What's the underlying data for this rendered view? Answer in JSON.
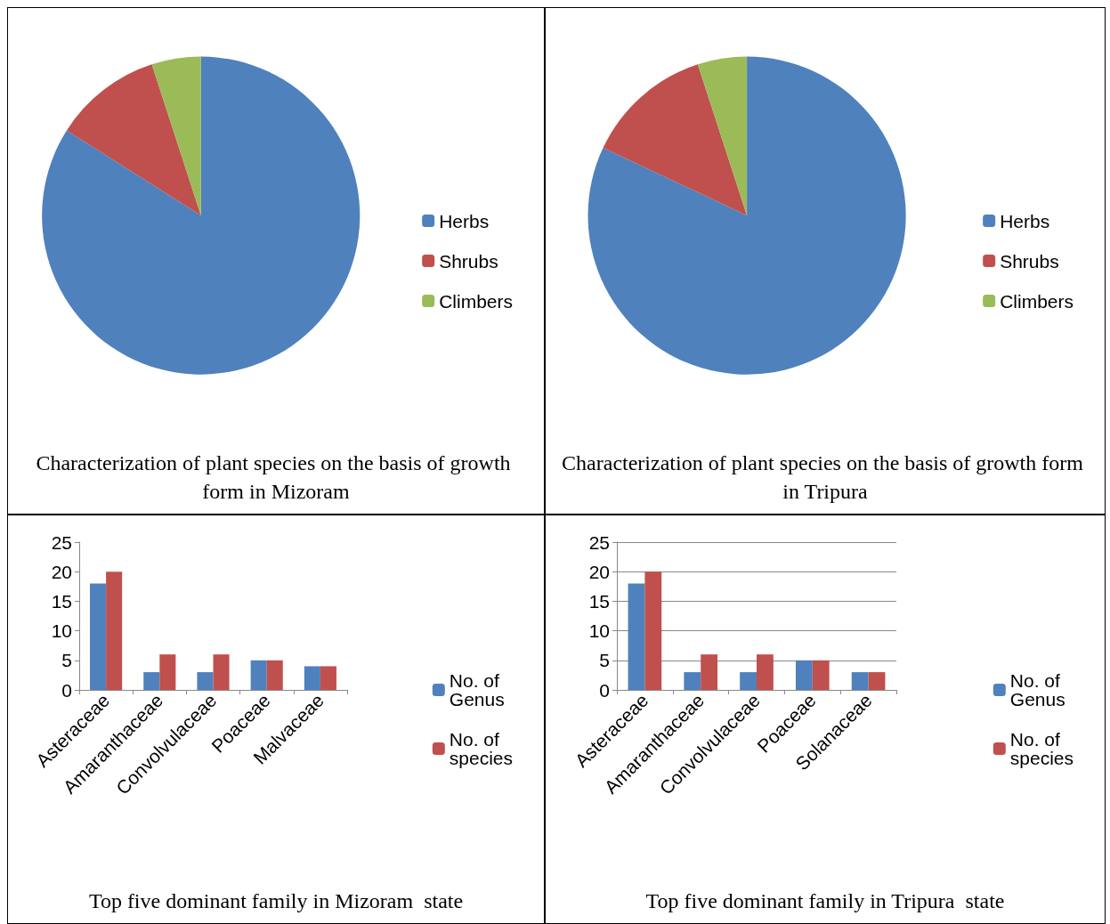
{
  "chart_data": [
    {
      "type": "pie",
      "title": "Characterization of plant species on the basis of growth form in Mizoram",
      "categories": [
        "Herbs",
        "Shrubs",
        "Climbers"
      ],
      "values": [
        84,
        11,
        5
      ],
      "colors": [
        "#4f81bd",
        "#c0504d",
        "#9bbb59"
      ],
      "legend": "right"
    },
    {
      "type": "pie",
      "title": "Characterization of plant species on the basis of growth form in Tripura",
      "categories": [
        "Herbs",
        "Shrubs",
        "Climbers"
      ],
      "values": [
        82,
        13,
        5
      ],
      "colors": [
        "#4f81bd",
        "#c0504d",
        "#9bbb59"
      ],
      "legend": "right"
    },
    {
      "type": "bar",
      "title": "Top five dominant family in Mizoram  state",
      "categories": [
        "Asteraceae",
        "Amaranthaceae",
        "Convolvulaceae",
        "Poaceae",
        "Malvaceae"
      ],
      "series": [
        {
          "name": "No. of Genus",
          "color": "#4f81bd",
          "values": [
            18,
            3,
            3,
            5,
            4
          ]
        },
        {
          "name": "No. of species",
          "color": "#c0504d",
          "values": [
            20,
            6,
            6,
            5,
            4
          ]
        }
      ],
      "ylim": [
        0,
        25
      ],
      "yticks": [
        0,
        5,
        10,
        15,
        20,
        25
      ],
      "grid": false,
      "legend": "right"
    },
    {
      "type": "bar",
      "title": "Top five dominant family in Tripura  state",
      "categories": [
        "Asteraceae",
        "Amaranthaceae",
        "Convolvulaceae",
        "Poaceae",
        "Solanaceae"
      ],
      "series": [
        {
          "name": "No. of Genus",
          "color": "#4f81bd",
          "values": [
            18,
            3,
            3,
            5,
            3
          ]
        },
        {
          "name": "No. of species",
          "color": "#c0504d",
          "values": [
            20,
            6,
            6,
            5,
            3
          ]
        }
      ],
      "ylim": [
        0,
        25
      ],
      "yticks": [
        0,
        5,
        10,
        15,
        20,
        25
      ],
      "grid": "y",
      "legend": "right"
    }
  ]
}
